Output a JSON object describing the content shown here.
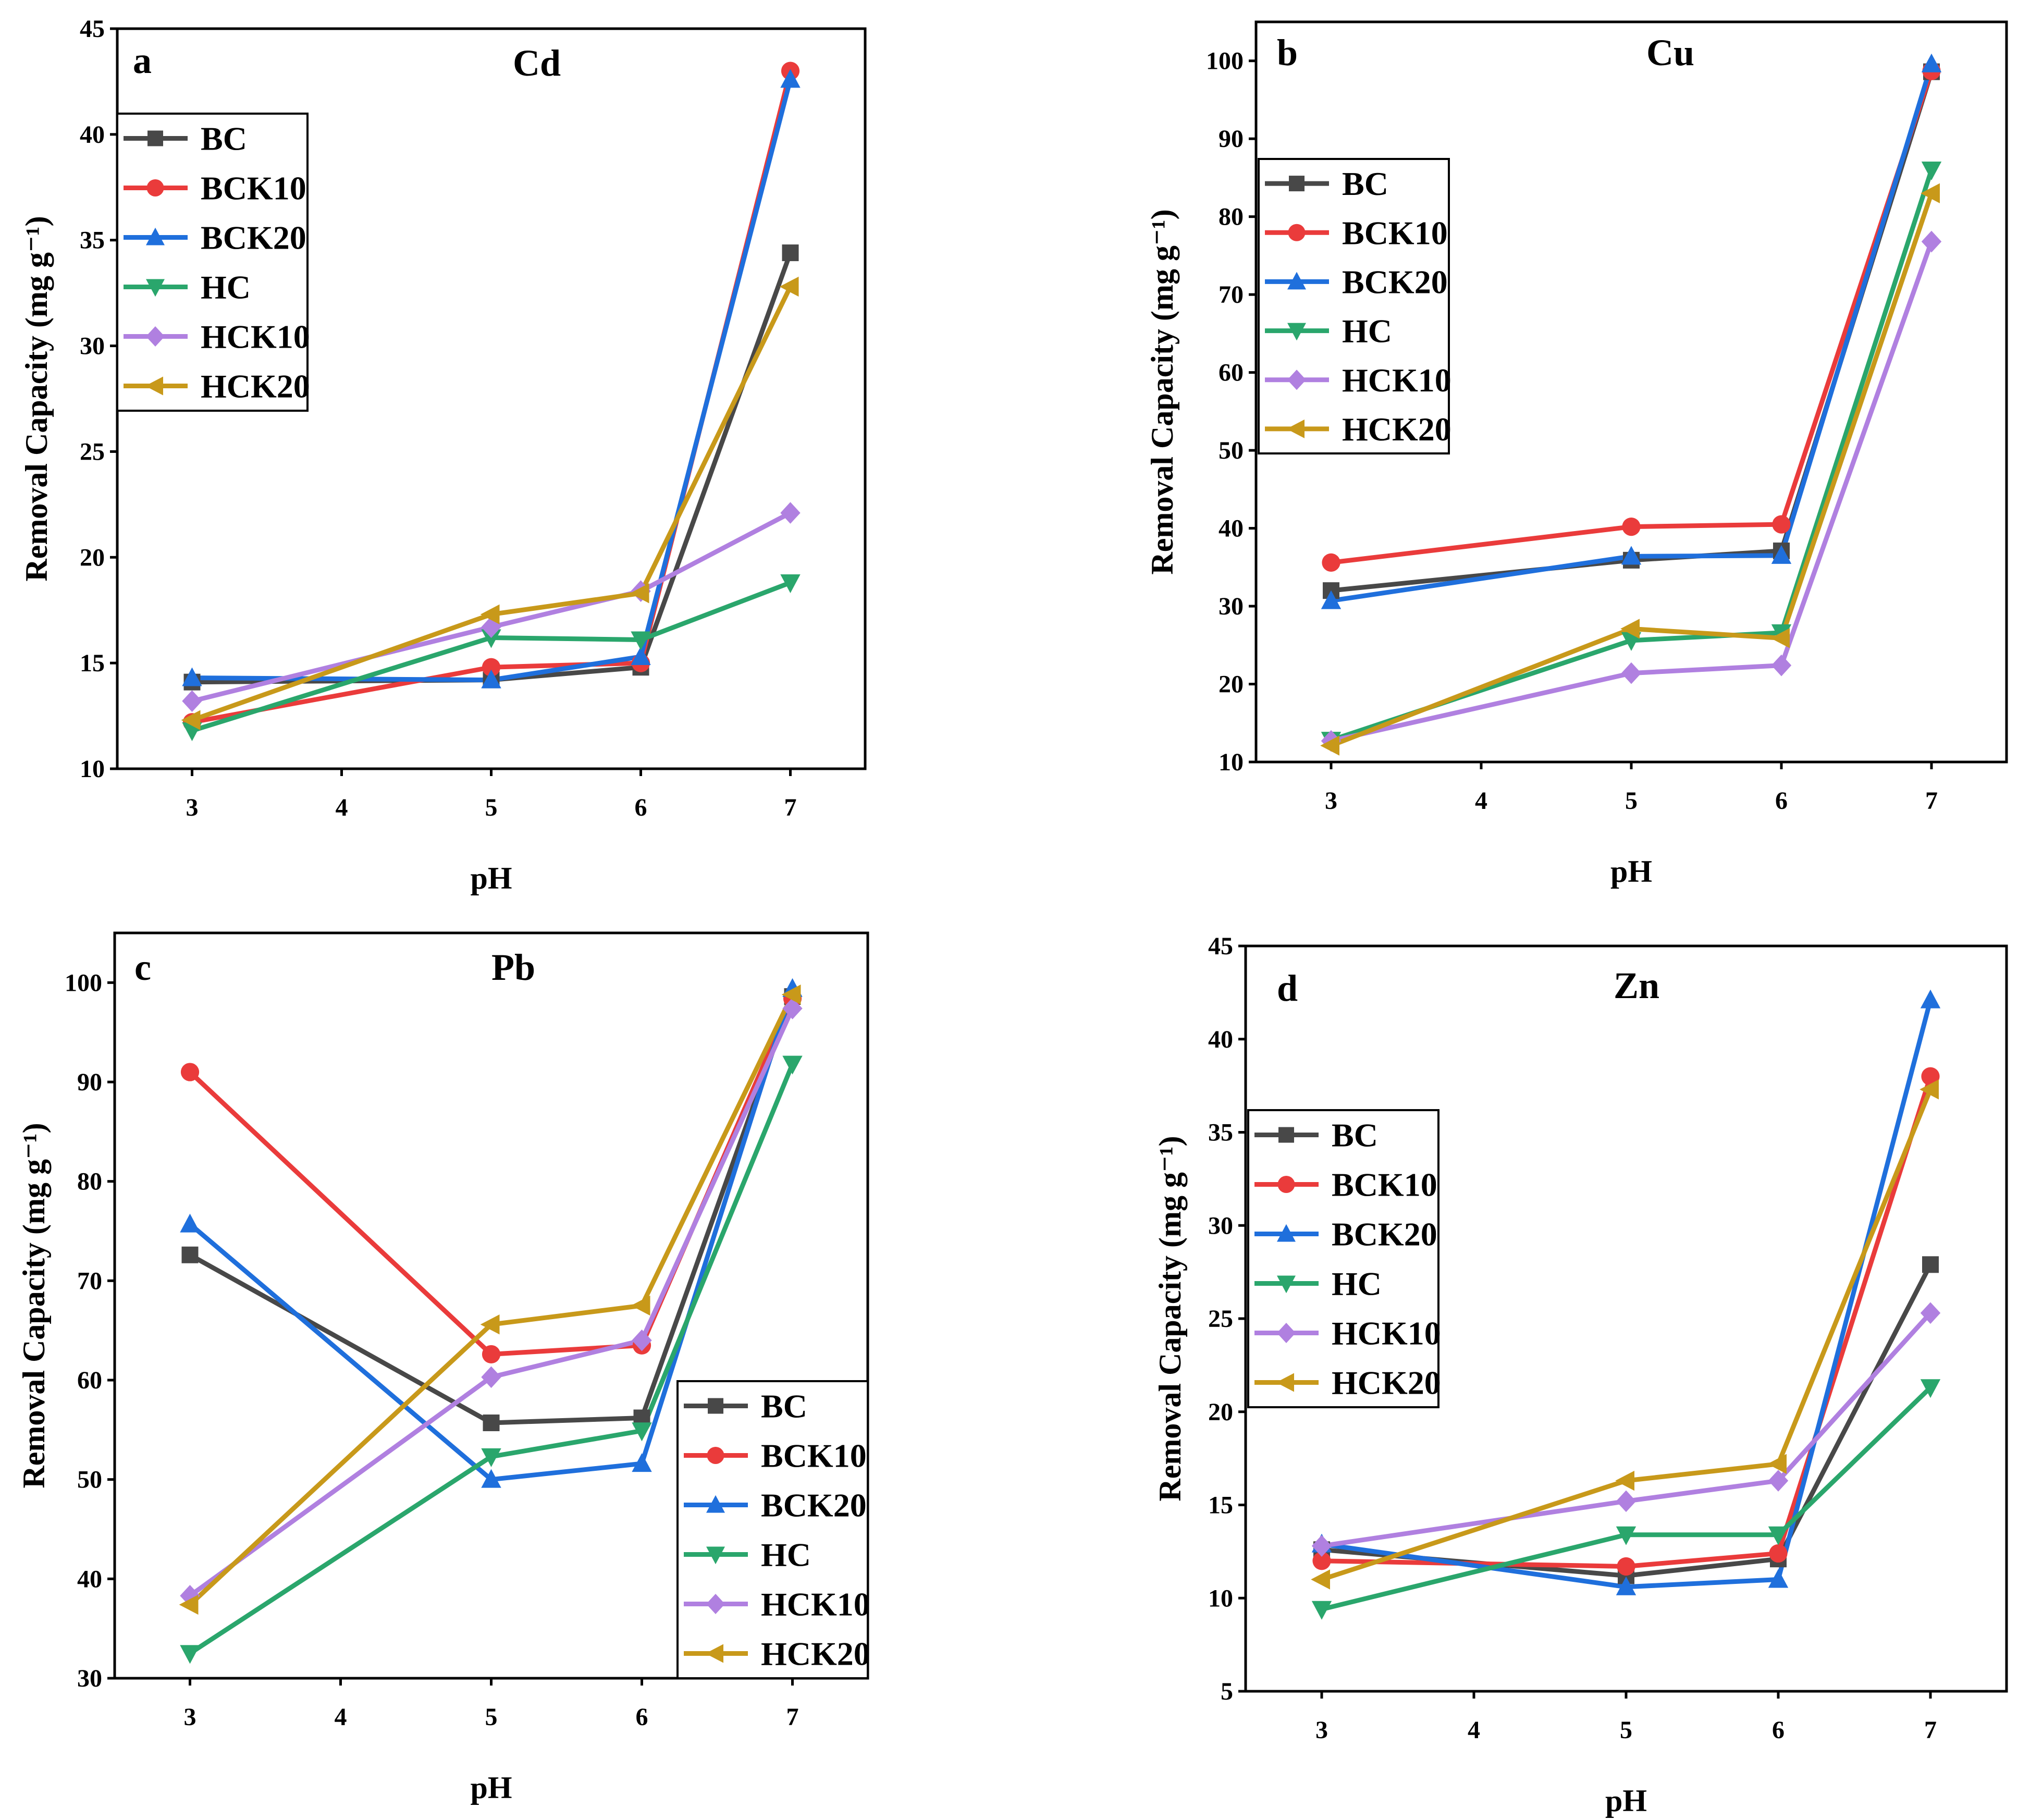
{
  "chart_data": [
    {
      "type": "line",
      "panel": "a",
      "title": "Cd",
      "xlabel": "pH",
      "ylabel": "Removal Capacity (mg g⁻¹)",
      "x": [
        3,
        5,
        6,
        7
      ],
      "xticks": [
        3,
        4,
        5,
        6,
        7
      ],
      "xlim": [
        2.5,
        7.5
      ],
      "ylim": [
        10,
        45
      ],
      "yticks": [
        10,
        15,
        20,
        25,
        30,
        35,
        40,
        45
      ],
      "legend_position": "upper-left",
      "series": [
        {
          "name": "BC",
          "values": [
            14.1,
            14.2,
            14.8,
            34.4
          ]
        },
        {
          "name": "BCK10",
          "values": [
            12.2,
            14.8,
            15.0,
            43.0
          ]
        },
        {
          "name": "BCK20",
          "values": [
            14.3,
            14.2,
            15.3,
            42.6
          ]
        },
        {
          "name": "HC",
          "values": [
            11.8,
            16.2,
            16.1,
            18.8
          ]
        },
        {
          "name": "HCK10",
          "values": [
            13.2,
            16.7,
            18.4,
            22.1
          ]
        },
        {
          "name": "HCK20",
          "values": [
            12.3,
            17.3,
            18.3,
            32.8
          ]
        }
      ]
    },
    {
      "type": "line",
      "panel": "b",
      "title": "Cu",
      "xlabel": "pH",
      "ylabel": "Removal Capacity (mg g⁻¹)",
      "x": [
        3,
        5,
        6,
        7
      ],
      "xticks": [
        3,
        4,
        5,
        6,
        7
      ],
      "xlim": [
        2.5,
        7.5
      ],
      "ylim": [
        10,
        105
      ],
      "yticks": [
        10,
        20,
        30,
        40,
        50,
        60,
        70,
        80,
        90,
        100
      ],
      "legend_position": "upper-left",
      "series": [
        {
          "name": "BC",
          "values": [
            32.0,
            35.9,
            37.1,
            98.6
          ]
        },
        {
          "name": "BCK10",
          "values": [
            35.6,
            40.2,
            40.5,
            98.7
          ]
        },
        {
          "name": "BCK20",
          "values": [
            30.7,
            36.4,
            36.5,
            99.6
          ]
        },
        {
          "name": "HC",
          "values": [
            12.8,
            25.6,
            26.6,
            86.0
          ]
        },
        {
          "name": "HCK10",
          "values": [
            12.7,
            21.4,
            22.4,
            76.8
          ]
        },
        {
          "name": "HCK20",
          "values": [
            12.1,
            27.1,
            25.9,
            83.0
          ]
        }
      ]
    },
    {
      "type": "line",
      "panel": "c",
      "title": "Pb",
      "xlabel": "pH",
      "ylabel": "Removal Capacity (mg g⁻¹)",
      "x": [
        3,
        5,
        6,
        7
      ],
      "xticks": [
        3,
        4,
        5,
        6,
        7
      ],
      "xlim": [
        2.5,
        7.5
      ],
      "ylim": [
        30,
        105
      ],
      "yticks": [
        30,
        40,
        50,
        60,
        70,
        80,
        90,
        100
      ],
      "legend_position": "lower-right",
      "series": [
        {
          "name": "BC",
          "values": [
            72.6,
            55.7,
            56.2,
            98.6
          ]
        },
        {
          "name": "BCK10",
          "values": [
            91.0,
            62.6,
            63.5,
            98.4
          ]
        },
        {
          "name": "BCK20",
          "values": [
            75.7,
            50.0,
            51.6,
            99.4
          ]
        },
        {
          "name": "HC",
          "values": [
            32.5,
            52.3,
            54.9,
            91.8
          ]
        },
        {
          "name": "HCK10",
          "values": [
            38.3,
            60.3,
            64.0,
            97.4
          ]
        },
        {
          "name": "HCK20",
          "values": [
            37.4,
            65.6,
            67.5,
            98.8
          ]
        }
      ]
    },
    {
      "type": "line",
      "panel": "d",
      "title": "Zn",
      "xlabel": "pH",
      "ylabel": "Removal Capacity (mg g⁻¹)",
      "x": [
        3,
        5,
        6,
        7
      ],
      "xticks": [
        3,
        4,
        5,
        6,
        7
      ],
      "xlim": [
        2.5,
        7.5
      ],
      "ylim": [
        5,
        45
      ],
      "yticks": [
        5,
        10,
        15,
        20,
        25,
        30,
        35,
        40,
        45
      ],
      "legend_position": "middle-left",
      "series": [
        {
          "name": "BC",
          "values": [
            12.6,
            11.2,
            12.1,
            27.9
          ]
        },
        {
          "name": "BCK10",
          "values": [
            12.0,
            11.7,
            12.4,
            38.0
          ]
        },
        {
          "name": "BCK20",
          "values": [
            12.9,
            10.6,
            11.0,
            42.1
          ]
        },
        {
          "name": "HC",
          "values": [
            9.4,
            13.4,
            13.4,
            21.3
          ]
        },
        {
          "name": "HCK10",
          "values": [
            12.8,
            15.2,
            16.3,
            25.3
          ]
        },
        {
          "name": "HCK20",
          "values": [
            11.0,
            16.3,
            17.2,
            37.3
          ]
        }
      ]
    }
  ],
  "series_styles": [
    {
      "name": "BC",
      "color": "#484848",
      "marker": "square"
    },
    {
      "name": "BCK10",
      "color": "#ea3b3b",
      "marker": "circle"
    },
    {
      "name": "BCK20",
      "color": "#1f6fdc",
      "marker": "triangle-up"
    },
    {
      "name": "HC",
      "color": "#2aa66c",
      "marker": "triangle-down"
    },
    {
      "name": "HCK10",
      "color": "#b080e0",
      "marker": "diamond"
    },
    {
      "name": "HCK20",
      "color": "#c8991a",
      "marker": "triangle-left"
    }
  ]
}
